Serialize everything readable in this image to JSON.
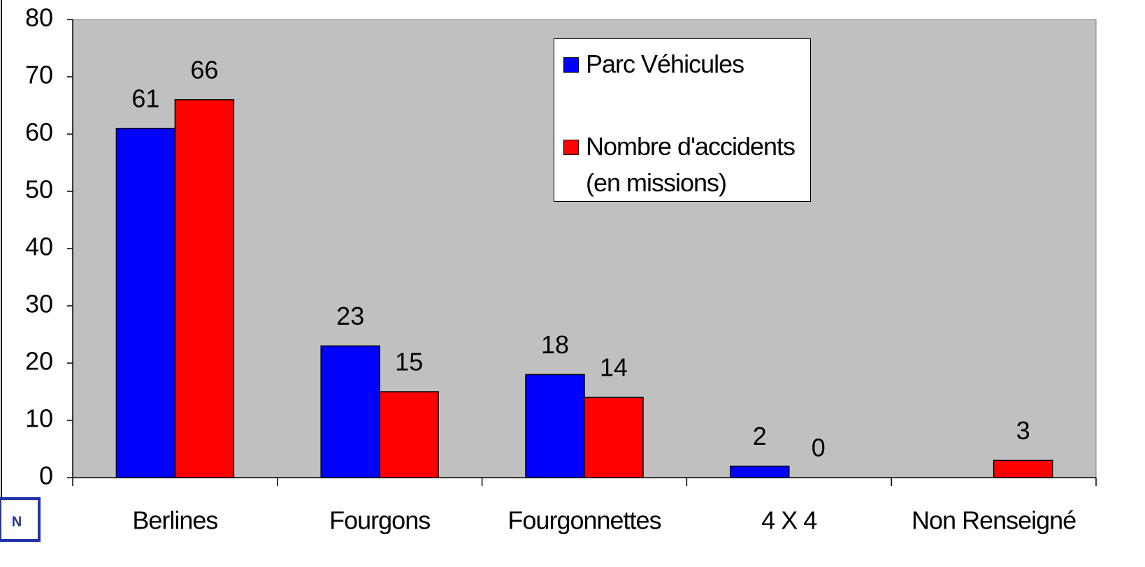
{
  "chart_data": {
    "type": "bar",
    "categories": [
      "Berlines",
      "Fourgons",
      "Fourgonnettes",
      "4 X 4",
      "Non Renseigné"
    ],
    "series": [
      {
        "name": "Parc Véhicules",
        "color": "#0000ff",
        "values": [
          61,
          23,
          18,
          2,
          null
        ]
      },
      {
        "name": "Nombre d'accidents (en missions)",
        "color": "#ff0000",
        "values": [
          66,
          15,
          14,
          0,
          3
        ]
      }
    ],
    "ylim": [
      0,
      80
    ],
    "yticks": [
      0,
      10,
      20,
      30,
      40,
      50,
      60,
      70,
      80
    ],
    "plot_background": "#c0c0c0",
    "legend": "top-right",
    "data_labels": true
  },
  "logo": "N"
}
